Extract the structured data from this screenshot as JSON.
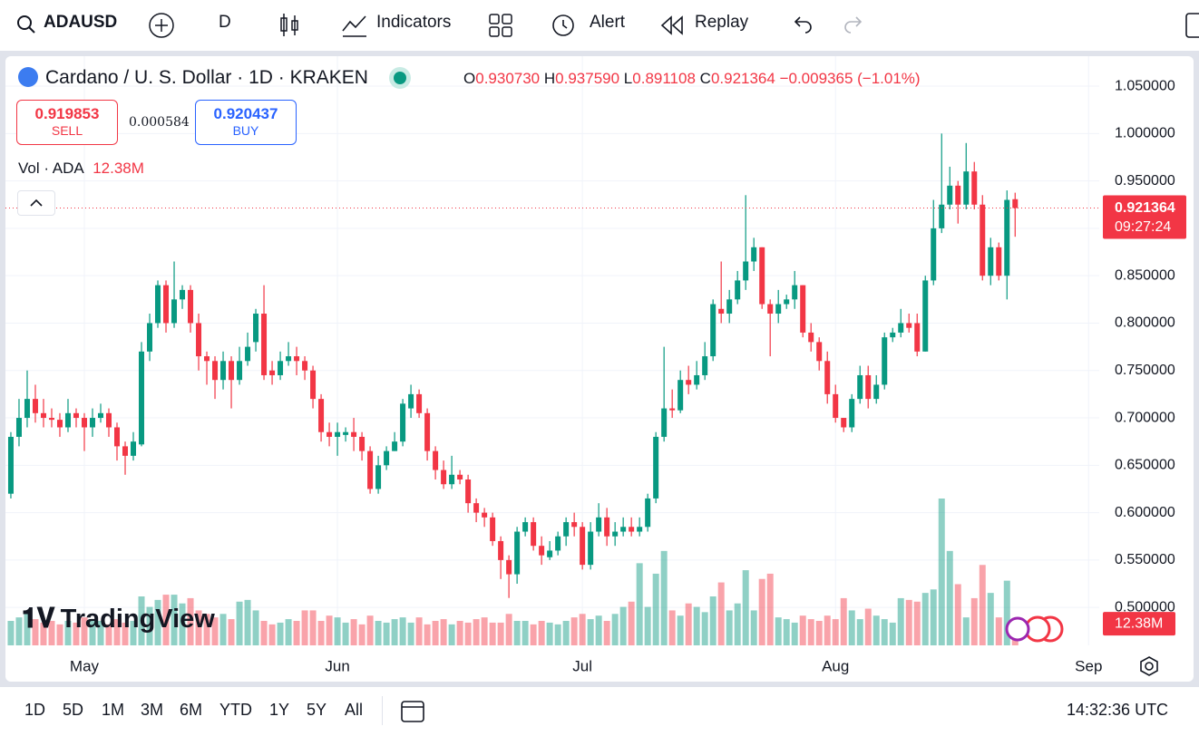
{
  "toolbar": {
    "symbol": "ADAUSD",
    "interval": "D",
    "indicators": "Indicators",
    "alert": "Alert",
    "replay": "Replay"
  },
  "legend": {
    "title": "Cardano / U. S. Dollar · 1D · KRAKEN",
    "open_key": "O",
    "open": "0.930730",
    "high_key": "H",
    "high": "0.937590",
    "low_key": "L",
    "low": "0.891108",
    "close_key": "C",
    "close": "0.921364",
    "change": "−0.009365 (−1.01%)"
  },
  "trade": {
    "sell_price": "0.919853",
    "sell": "SELL",
    "spread": "0.000584",
    "buy_price": "0.920437",
    "buy": "BUY"
  },
  "volume_legend": {
    "label": "Vol · ADA"
  },
  "watermark": "TradingView",
  "ranges": [
    "1D",
    "5D",
    "1M",
    "3M",
    "6M",
    "YTD",
    "1Y",
    "5Y",
    "All"
  ],
  "clock": "14:32:36 UTC",
  "chart_data": {
    "type": "candlestick",
    "up_color": "#089981",
    "down_color": "#f23645",
    "categories": [
      null,
      null,
      null,
      null,
      null,
      null,
      null,
      null,
      null,
      null,
      null,
      null,
      null,
      null,
      null,
      null,
      null,
      null,
      null,
      null,
      null,
      null,
      null,
      null,
      null,
      null,
      null,
      null,
      null,
      null,
      null,
      null,
      null,
      null,
      null,
      null,
      null,
      null,
      null,
      null,
      null,
      null,
      null,
      null,
      null,
      null,
      null,
      null,
      null,
      null,
      null,
      null,
      null,
      null,
      null,
      null,
      null,
      null,
      null,
      null,
      null,
      null,
      null,
      null,
      null,
      null,
      null,
      null,
      null,
      null,
      null,
      null,
      null,
      null,
      null,
      null,
      null,
      null,
      null,
      null,
      null,
      null,
      null,
      null,
      null,
      null,
      null,
      null,
      null,
      null,
      null,
      null,
      null,
      null,
      null,
      null,
      null,
      null,
      null,
      null,
      null,
      null,
      null,
      null,
      null,
      null,
      null,
      null,
      null,
      null,
      null,
      null,
      null,
      null,
      null,
      null,
      null,
      null,
      null,
      null,
      null,
      null,
      null,
      null
    ],
    "open": [
      0.62,
      0.68,
      0.7,
      0.72,
      0.705,
      0.7,
      0.698,
      0.69,
      0.705,
      0.7,
      0.69,
      0.7,
      0.705,
      0.69,
      0.67,
      0.66,
      0.672,
      0.77,
      0.8,
      0.84,
      0.8,
      0.825,
      0.835,
      0.8,
      0.765,
      0.76,
      0.74,
      0.76,
      0.74,
      0.76,
      0.78,
      0.81,
      0.75,
      0.745,
      0.76,
      0.765,
      0.76,
      0.75,
      0.72,
      0.685,
      0.68,
      0.682,
      0.685,
      0.68,
      0.665,
      0.625,
      0.65,
      0.665,
      0.675,
      0.71,
      0.725,
      0.705,
      0.665,
      0.645,
      0.63,
      0.64,
      0.635,
      0.61,
      0.6,
      0.595,
      0.57,
      0.55,
      0.535,
      0.58,
      0.59,
      0.565,
      0.553,
      0.56,
      0.575,
      0.59,
      0.585,
      0.545,
      0.58,
      0.595,
      0.575,
      0.58,
      0.585,
      0.58,
      0.585,
      0.615,
      0.68,
      0.71,
      0.708,
      0.74,
      0.735,
      0.745,
      0.765,
      0.815,
      0.81,
      0.825,
      0.845,
      0.865,
      0.88,
      0.82,
      0.81,
      0.82,
      0.825,
      0.84,
      0.79,
      0.78,
      0.76,
      0.725,
      0.7,
      0.69,
      0.72,
      0.745,
      0.72,
      0.735,
      0.785,
      0.79,
      0.8,
      0.8,
      0.77,
      0.845,
      0.9,
      0.925,
      0.945,
      0.925,
      0.96,
      0.925,
      0.85,
      0.88,
      0.85,
      0.93073
    ],
    "high": [
      0.685,
      0.72,
      0.75,
      0.735,
      0.72,
      0.71,
      0.705,
      0.72,
      0.71,
      0.705,
      0.71,
      0.715,
      0.71,
      0.695,
      0.675,
      0.685,
      0.78,
      0.81,
      0.845,
      0.845,
      0.865,
      0.84,
      0.84,
      0.81,
      0.77,
      0.765,
      0.77,
      0.765,
      0.775,
      0.79,
      0.815,
      0.84,
      0.76,
      0.77,
      0.78,
      0.775,
      0.765,
      0.755,
      0.725,
      0.695,
      0.695,
      0.69,
      0.7,
      0.685,
      0.67,
      0.66,
      0.67,
      0.685,
      0.72,
      0.735,
      0.73,
      0.71,
      0.67,
      0.655,
      0.66,
      0.645,
      0.64,
      0.615,
      0.605,
      0.6,
      0.575,
      0.555,
      0.585,
      0.595,
      0.595,
      0.575,
      0.57,
      0.58,
      0.595,
      0.6,
      0.59,
      0.59,
      0.61,
      0.605,
      0.59,
      0.595,
      0.595,
      0.595,
      0.62,
      0.685,
      0.775,
      0.73,
      0.75,
      0.755,
      0.76,
      0.78,
      0.825,
      0.865,
      0.835,
      0.855,
      0.935,
      0.89,
      0.88,
      0.825,
      0.835,
      0.83,
      0.855,
      0.84,
      0.8,
      0.785,
      0.77,
      0.735,
      0.7,
      0.725,
      0.755,
      0.755,
      0.745,
      0.79,
      0.795,
      0.815,
      0.81,
      0.81,
      0.85,
      0.93,
      1.0,
      0.965,
      0.95,
      0.99,
      0.97,
      0.935,
      0.89,
      0.885,
      0.94,
      0.93759
    ],
    "low": [
      0.615,
      0.67,
      0.69,
      0.695,
      0.69,
      0.69,
      0.68,
      0.685,
      0.69,
      0.665,
      0.68,
      0.695,
      0.68,
      0.655,
      0.64,
      0.655,
      0.67,
      0.76,
      0.795,
      0.79,
      0.795,
      0.815,
      0.79,
      0.75,
      0.735,
      0.72,
      0.73,
      0.71,
      0.735,
      0.755,
      0.77,
      0.74,
      0.735,
      0.74,
      0.755,
      0.745,
      0.74,
      0.71,
      0.675,
      0.67,
      0.66,
      0.675,
      0.665,
      0.655,
      0.62,
      0.62,
      0.645,
      0.665,
      0.67,
      0.7,
      0.7,
      0.655,
      0.635,
      0.625,
      0.625,
      0.63,
      0.6,
      0.59,
      0.585,
      0.565,
      0.53,
      0.51,
      0.525,
      0.575,
      0.56,
      0.545,
      0.55,
      0.555,
      0.565,
      0.575,
      0.54,
      0.54,
      0.575,
      0.565,
      0.565,
      0.575,
      0.575,
      0.575,
      0.58,
      0.61,
      0.675,
      0.7,
      0.705,
      0.725,
      0.73,
      0.74,
      0.76,
      0.8,
      0.8,
      0.82,
      0.835,
      0.855,
      0.815,
      0.765,
      0.8,
      0.815,
      0.815,
      0.785,
      0.77,
      0.75,
      0.715,
      0.695,
      0.685,
      0.685,
      0.715,
      0.71,
      0.715,
      0.73,
      0.78,
      0.785,
      0.79,
      0.765,
      0.77,
      0.84,
      0.895,
      0.92,
      0.905,
      0.92,
      0.92,
      0.845,
      0.84,
      0.845,
      0.825,
      0.891108
    ],
    "close": [
      0.68,
      0.7,
      0.72,
      0.705,
      0.7,
      0.698,
      0.69,
      0.705,
      0.7,
      0.69,
      0.7,
      0.705,
      0.69,
      0.67,
      0.66,
      0.675,
      0.77,
      0.8,
      0.84,
      0.8,
      0.825,
      0.835,
      0.8,
      0.765,
      0.76,
      0.74,
      0.76,
      0.74,
      0.76,
      0.775,
      0.81,
      0.745,
      0.745,
      0.76,
      0.765,
      0.76,
      0.75,
      0.72,
      0.685,
      0.68,
      0.685,
      0.685,
      0.68,
      0.665,
      0.625,
      0.65,
      0.665,
      0.675,
      0.715,
      0.725,
      0.705,
      0.665,
      0.645,
      0.63,
      0.64,
      0.635,
      0.61,
      0.6,
      0.595,
      0.57,
      0.55,
      0.535,
      0.58,
      0.59,
      0.565,
      0.555,
      0.56,
      0.575,
      0.59,
      0.585,
      0.545,
      0.58,
      0.595,
      0.575,
      0.58,
      0.585,
      0.58,
      0.585,
      0.615,
      0.68,
      0.71,
      0.708,
      0.74,
      0.735,
      0.745,
      0.765,
      0.82,
      0.81,
      0.825,
      0.845,
      0.865,
      0.88,
      0.82,
      0.81,
      0.82,
      0.825,
      0.84,
      0.79,
      0.78,
      0.76,
      0.725,
      0.7,
      0.69,
      0.72,
      0.745,
      0.72,
      0.735,
      0.785,
      0.79,
      0.8,
      0.795,
      0.77,
      0.845,
      0.9,
      0.925,
      0.945,
      0.925,
      0.96,
      0.925,
      0.85,
      0.88,
      0.85,
      0.93,
      0.921364
    ],
    "volume": [
      14,
      16,
      18,
      15,
      13,
      14,
      12,
      14,
      13,
      16,
      15,
      14,
      12,
      15,
      13,
      14,
      28,
      22,
      26,
      29,
      29,
      24,
      27,
      20,
      18,
      16,
      18,
      15,
      25,
      26,
      20,
      14,
      12,
      13,
      15,
      14,
      20,
      20,
      14,
      17,
      16,
      13,
      15,
      12,
      17,
      14,
      13,
      15,
      16,
      13,
      16,
      12,
      14,
      15,
      12,
      14,
      13,
      15,
      16,
      13,
      13,
      18,
      14,
      14,
      12,
      14,
      13,
      12,
      14,
      16,
      18,
      15,
      17,
      14,
      18,
      22,
      25,
      47,
      22,
      41,
      54,
      20,
      17,
      24,
      22,
      19,
      28,
      36,
      20,
      24,
      43,
      20,
      38,
      41,
      16,
      15,
      13,
      17,
      15,
      14,
      17,
      15,
      27,
      20,
      15,
      21,
      17,
      15,
      13,
      27,
      26,
      25,
      30,
      32,
      84,
      54,
      35,
      16,
      27,
      46,
      30,
      16,
      37,
      12.38
    ],
    "volume_label": "12.38M",
    "last_price_label": "0.921364",
    "countdown": "09:27:24",
    "ylim": [
      0.46,
      1.0816
    ],
    "yticks": [
      {
        "value": 0.5,
        "label": "0.500000"
      },
      {
        "value": 0.55,
        "label": "0.550000"
      },
      {
        "value": 0.6,
        "label": "0.600000"
      },
      {
        "value": 0.65,
        "label": "0.650000"
      },
      {
        "value": 0.7,
        "label": "0.700000"
      },
      {
        "value": 0.75,
        "label": "0.750000"
      },
      {
        "value": 0.8,
        "label": "0.800000"
      },
      {
        "value": 0.85,
        "label": "0.850000"
      },
      {
        "value": 0.9,
        "label": "0.900000"
      },
      {
        "value": 0.95,
        "label": "0.950000"
      },
      {
        "value": 1.0,
        "label": "1.000000"
      },
      {
        "value": 1.05,
        "label": "1.050000"
      }
    ],
    "xlim": [
      -1.33,
      133.3
    ],
    "xticks": [
      {
        "value": 9,
        "label": "May"
      },
      {
        "value": 40,
        "label": "Jun"
      },
      {
        "value": 70,
        "label": "Jul"
      },
      {
        "value": 101,
        "label": "Aug"
      },
      {
        "value": 132,
        "label": "Sep"
      }
    ],
    "grid": true
  }
}
